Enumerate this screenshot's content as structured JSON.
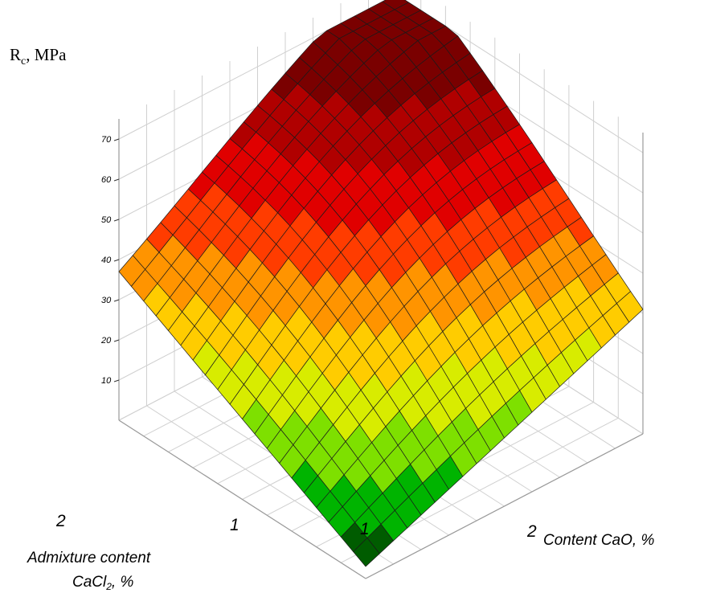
{
  "chart_data": {
    "type": "surface3d",
    "z_label": "R",
    "z_label_sub": "c",
    "z_label_rest": ", MPa",
    "z_ticks": [
      "10",
      "20",
      "30",
      "40",
      "50",
      "60",
      "70"
    ],
    "z_range": [
      0,
      70
    ],
    "x_label": "Content CaO, %",
    "x_ticks": [
      "1",
      "2"
    ],
    "y_label_line1": "Admixture content",
    "y_label_line2": "CaCl",
    "y_label_line2_sub": "2",
    "y_label_line2_rest": ", %",
    "y_ticks": [
      "1",
      "2"
    ],
    "grid": true,
    "colors": [
      "#005c00",
      "#00b400",
      "#7ee000",
      "#d8ec00",
      "#ffcc00",
      "#ff9400",
      "#ff3c00",
      "#e00000",
      "#b00000",
      "#7a0000"
    ],
    "grid_resolution": 20,
    "surface_samples": {
      "corner_front": 3,
      "corner_left": 37,
      "corner_right": 31,
      "corner_back": 70
    }
  }
}
